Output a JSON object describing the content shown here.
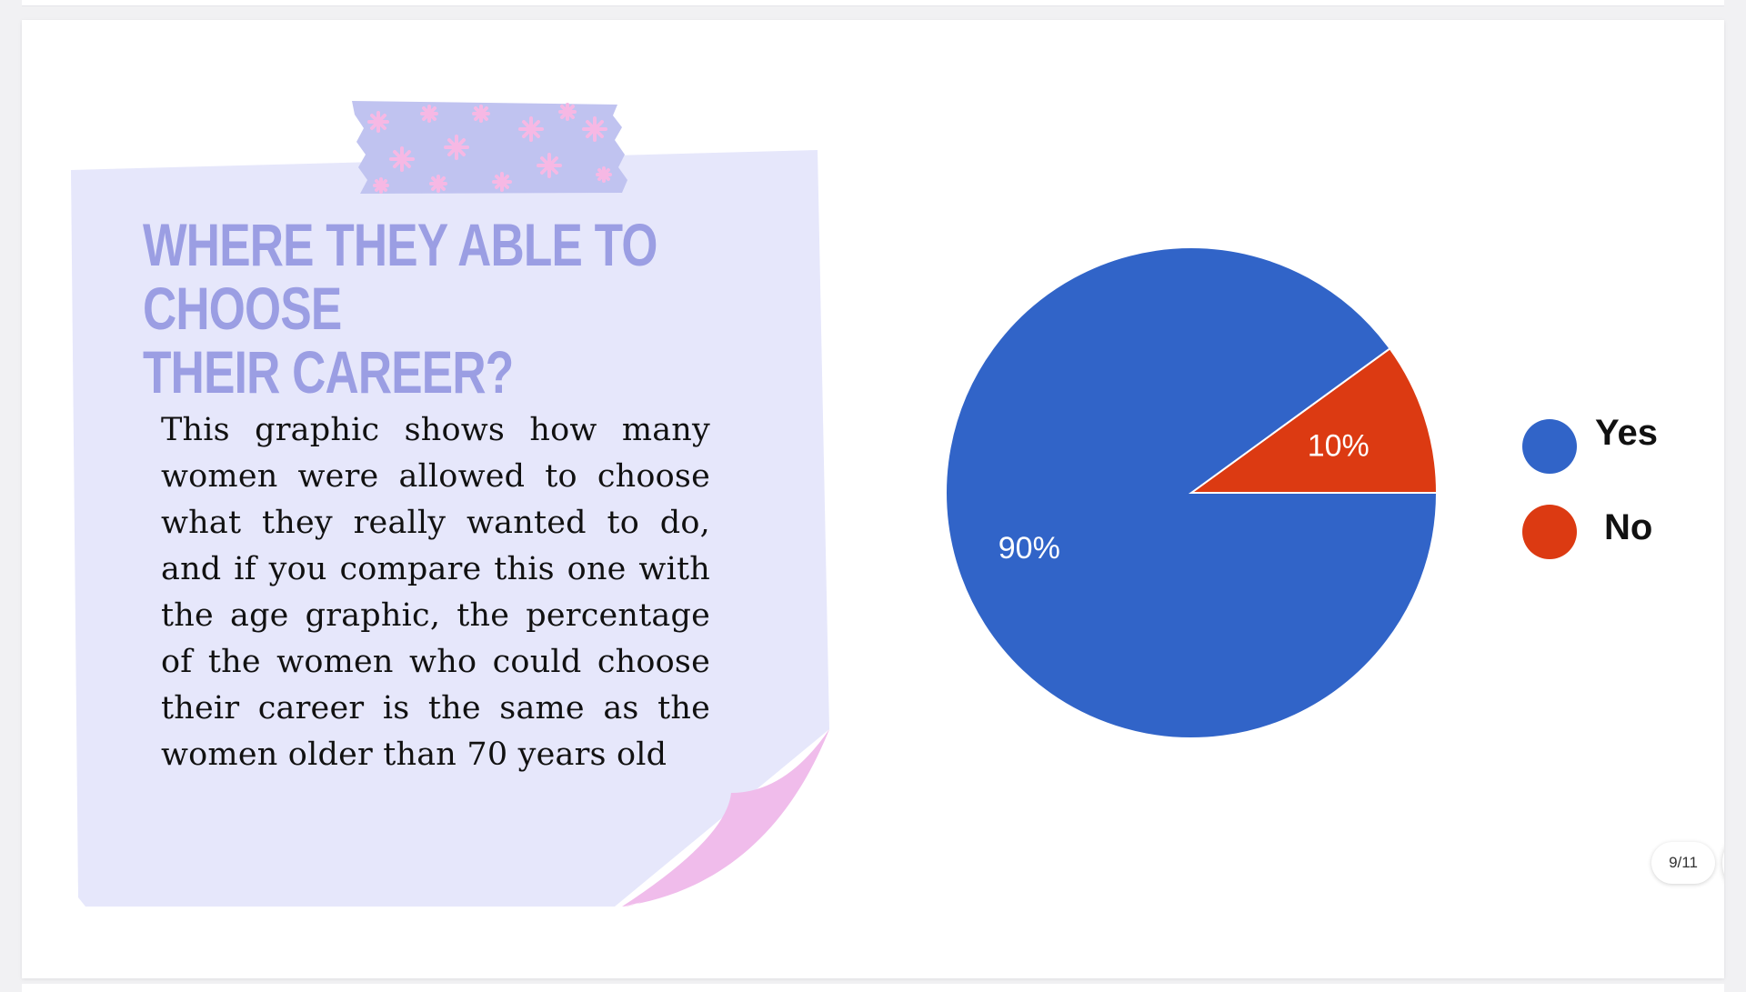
{
  "slide": {
    "title": "WHERE THEY ABLE TO CHOOSE\nTHEIR CAREER?",
    "body": "This graphic shows how many women were allowed to choose what they really wanted to do, and if you compare this one with the age graphic, the percentage of the women who could choose their career is the same as the women older than 70 years old"
  },
  "chart_data": {
    "type": "pie",
    "series": [
      {
        "name": "Yes",
        "value": 90,
        "label": "90%",
        "color": "#3164c8"
      },
      {
        "name": "No",
        "value": 10,
        "label": "10%",
        "color": "#dc3a12"
      }
    ],
    "legend_position": "right"
  },
  "viewer": {
    "page_counter": "9/11",
    "grid_icon": "grid-dots-icon"
  },
  "colors": {
    "note_paper": "#e6e7fb",
    "tape": "#c0c3f0",
    "tape_stars": "#f6b8e4",
    "curl": "#f0bceb",
    "title": "#9b9ee3"
  }
}
